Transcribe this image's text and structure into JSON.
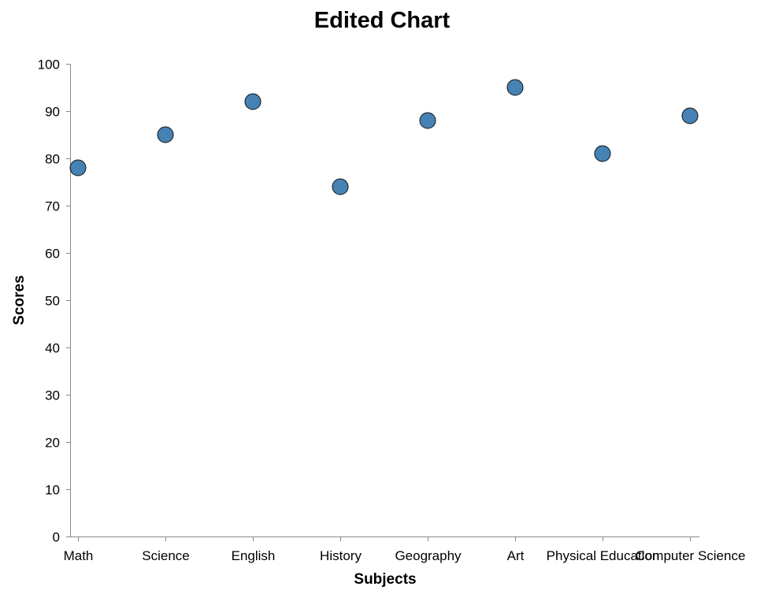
{
  "chart_data": {
    "type": "scatter",
    "title": "Edited Chart",
    "xlabel": "Subjects",
    "ylabel": "Scores",
    "categories": [
      "Math",
      "Science",
      "English",
      "History",
      "Geography",
      "Art",
      "Physical Education",
      "Computer Science"
    ],
    "values": [
      78,
      85,
      92,
      74,
      88,
      95,
      81,
      89
    ],
    "ylim": [
      0,
      100
    ],
    "yticks": [
      0,
      10,
      20,
      30,
      40,
      50,
      60,
      70,
      80,
      90,
      100
    ],
    "grid": false,
    "legend": "none",
    "colors": {
      "point": "#4682b4",
      "axis": "#888888"
    }
  }
}
